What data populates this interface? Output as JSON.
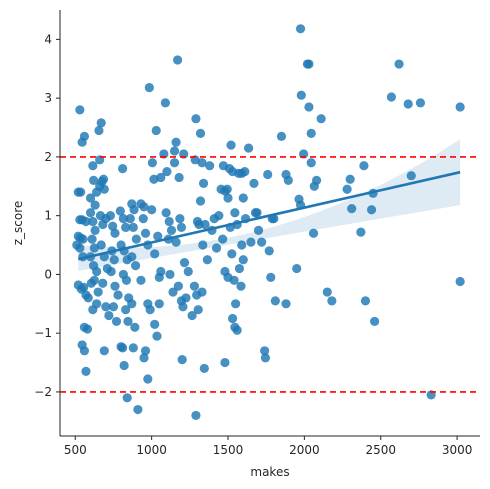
{
  "chart_data": {
    "type": "scatter",
    "xlabel": "makes",
    "ylabel": "z_score",
    "xlim": [
      400,
      3150
    ],
    "ylim": [
      -2.75,
      4.5
    ],
    "x_ticks": [
      500,
      1000,
      1500,
      2000,
      2500,
      3000
    ],
    "y_ticks": [
      -2,
      -1,
      0,
      1,
      2,
      3,
      4
    ],
    "grid": false,
    "colors": {
      "points": "#1f77b4",
      "regression_line": "#1f77b4",
      "confidence_band": "#1f77b4",
      "reference_lines": "#ff0000"
    },
    "reference_lines": [
      2,
      -2
    ],
    "regression": {
      "x": [
        520,
        3020
      ],
      "y": [
        0.26,
        1.74
      ],
      "ci_lower": [
        0.06,
        1.18
      ],
      "ci_mid_lower": [
        0.49,
        0.76
      ],
      "ci_mid_upper": [
        0.6,
        0.98
      ],
      "ci_upper": [
        0.5,
        2.3
      ]
    },
    "points": [
      [
        530,
        2.8
      ],
      [
        545,
        2.25
      ],
      [
        560,
        2.35
      ],
      [
        520,
        1.4
      ],
      [
        535,
        1.4
      ],
      [
        530,
        0.93
      ],
      [
        545,
        0.93
      ],
      [
        520,
        0.65
      ],
      [
        535,
        0.62
      ],
      [
        550,
        0.6
      ],
      [
        510,
        0.5
      ],
      [
        530,
        0.45
      ],
      [
        550,
        0.3
      ],
      [
        570,
        0.9
      ],
      [
        520,
        -0.18
      ],
      [
        540,
        -0.25
      ],
      [
        555,
        -0.22
      ],
      [
        570,
        -0.35
      ],
      [
        585,
        -0.4
      ],
      [
        560,
        -0.9
      ],
      [
        580,
        -0.93
      ],
      [
        545,
        -1.2
      ],
      [
        560,
        -1.3
      ],
      [
        570,
        -1.65
      ],
      [
        600,
        1.3
      ],
      [
        620,
        1.6
      ],
      [
        615,
        1.85
      ],
      [
        630,
        1.18
      ],
      [
        640,
        1.4
      ],
      [
        600,
        1.05
      ],
      [
        615,
        0.9
      ],
      [
        630,
        0.75
      ],
      [
        610,
        0.6
      ],
      [
        625,
        0.45
      ],
      [
        600,
        0.3
      ],
      [
        620,
        0.15
      ],
      [
        640,
        0.05
      ],
      [
        605,
        -0.15
      ],
      [
        625,
        -0.1
      ],
      [
        650,
        -0.3
      ],
      [
        615,
        -0.6
      ],
      [
        640,
        -0.5
      ],
      [
        655,
        2.45
      ],
      [
        670,
        2.58
      ],
      [
        660,
        1.5
      ],
      [
        675,
        1.58
      ],
      [
        685,
        1.62
      ],
      [
        690,
        1.45
      ],
      [
        665,
        1.0
      ],
      [
        680,
        0.85
      ],
      [
        700,
        0.95
      ],
      [
        670,
        0.5
      ],
      [
        690,
        0.3
      ],
      [
        710,
        0.1
      ],
      [
        680,
        -0.15
      ],
      [
        700,
        -0.55
      ],
      [
        720,
        -0.7
      ],
      [
        690,
        -1.3
      ],
      [
        660,
        1.95
      ],
      [
        730,
        1.0
      ],
      [
        745,
        0.82
      ],
      [
        760,
        0.7
      ],
      [
        740,
        0.4
      ],
      [
        755,
        0.25
      ],
      [
        735,
        0.05
      ],
      [
        760,
        -0.2
      ],
      [
        780,
        -0.35
      ],
      [
        750,
        -0.55
      ],
      [
        770,
        -0.8
      ],
      [
        800,
        -1.23
      ],
      [
        810,
        -1.25
      ],
      [
        820,
        -1.55
      ],
      [
        810,
        1.8
      ],
      [
        795,
        1.08
      ],
      [
        815,
        0.95
      ],
      [
        830,
        0.8
      ],
      [
        800,
        0.5
      ],
      [
        820,
        0.4
      ],
      [
        840,
        0.25
      ],
      [
        815,
        0.0
      ],
      [
        835,
        -0.1
      ],
      [
        850,
        -0.4
      ],
      [
        830,
        -0.6
      ],
      [
        845,
        -0.8
      ],
      [
        840,
        -2.1
      ],
      [
        870,
        1.2
      ],
      [
        885,
        1.1
      ],
      [
        860,
        0.95
      ],
      [
        880,
        0.8
      ],
      [
        900,
        0.6
      ],
      [
        870,
        0.3
      ],
      [
        895,
        0.15
      ],
      [
        870,
        -0.5
      ],
      [
        890,
        -0.9
      ],
      [
        880,
        -1.25
      ],
      [
        910,
        -2.3
      ],
      [
        930,
        1.2
      ],
      [
        950,
        1.15
      ],
      [
        960,
        0.7
      ],
      [
        945,
        0.95
      ],
      [
        975,
        0.5
      ],
      [
        930,
        -0.1
      ],
      [
        960,
        -1.3
      ],
      [
        950,
        -1.42
      ],
      [
        975,
        -1.78
      ],
      [
        985,
        3.18
      ],
      [
        975,
        -0.5
      ],
      [
        990,
        -0.6
      ],
      [
        1000,
        1.1
      ],
      [
        1005,
        1.9
      ],
      [
        1015,
        1.62
      ],
      [
        1020,
        0.35
      ],
      [
        1030,
        2.45
      ],
      [
        1040,
        0.65
      ],
      [
        1050,
        -0.05
      ],
      [
        1060,
        1.65
      ],
      [
        1020,
        -0.85
      ],
      [
        1035,
        -1.05
      ],
      [
        1050,
        -0.5
      ],
      [
        1060,
        0.05
      ],
      [
        1080,
        2.05
      ],
      [
        1090,
        2.92
      ],
      [
        1100,
        1.75
      ],
      [
        1095,
        1.05
      ],
      [
        1115,
        0.9
      ],
      [
        1130,
        0.75
      ],
      [
        1110,
        0.6
      ],
      [
        1120,
        0.0
      ],
      [
        1140,
        -0.3
      ],
      [
        1150,
        2.1
      ],
      [
        1160,
        2.25
      ],
      [
        1170,
        3.65
      ],
      [
        1150,
        1.9
      ],
      [
        1180,
        1.65
      ],
      [
        1160,
        0.55
      ],
      [
        1175,
        -0.2
      ],
      [
        1195,
        -0.45
      ],
      [
        1185,
        0.95
      ],
      [
        1210,
        2.05
      ],
      [
        1195,
        0.8
      ],
      [
        1215,
        0.2
      ],
      [
        1205,
        -0.55
      ],
      [
        1225,
        -0.4
      ],
      [
        1200,
        -1.45
      ],
      [
        1240,
        0.05
      ],
      [
        1265,
        -0.7
      ],
      [
        1285,
        1.95
      ],
      [
        1290,
        2.65
      ],
      [
        1300,
        0.9
      ],
      [
        1310,
        0.85
      ],
      [
        1280,
        -0.2
      ],
      [
        1295,
        -0.35
      ],
      [
        1305,
        -0.6
      ],
      [
        1290,
        -2.4
      ],
      [
        1320,
        2.4
      ],
      [
        1330,
        1.9
      ],
      [
        1340,
        1.55
      ],
      [
        1320,
        1.25
      ],
      [
        1335,
        0.5
      ],
      [
        1350,
        0.85
      ],
      [
        1330,
        -0.3
      ],
      [
        1345,
        -1.6
      ],
      [
        1365,
        0.25
      ],
      [
        1380,
        1.85
      ],
      [
        1395,
        0.75
      ],
      [
        1410,
        0.95
      ],
      [
        1425,
        0.45
      ],
      [
        1440,
        1.0
      ],
      [
        1455,
        1.45
      ],
      [
        1470,
        1.85
      ],
      [
        1480,
        1.42
      ],
      [
        1495,
        1.45
      ],
      [
        1500,
        1.3
      ],
      [
        1510,
        1.8
      ],
      [
        1465,
        0.6
      ],
      [
        1480,
        0.05
      ],
      [
        1500,
        -0.05
      ],
      [
        1515,
        0.8
      ],
      [
        1480,
        -1.5
      ],
      [
        1520,
        2.2
      ],
      [
        1530,
        1.75
      ],
      [
        1545,
        1.05
      ],
      [
        1560,
        0.85
      ],
      [
        1525,
        0.35
      ],
      [
        1540,
        -0.1
      ],
      [
        1550,
        -0.5
      ],
      [
        1530,
        -0.75
      ],
      [
        1545,
        -0.9
      ],
      [
        1570,
        1.72
      ],
      [
        1590,
        1.72
      ],
      [
        1610,
        1.75
      ],
      [
        1600,
        1.3
      ],
      [
        1615,
        0.95
      ],
      [
        1590,
        0.5
      ],
      [
        1600,
        0.25
      ],
      [
        1575,
        0.1
      ],
      [
        1585,
        -0.2
      ],
      [
        1560,
        -0.95
      ],
      [
        1635,
        2.15
      ],
      [
        1650,
        0.55
      ],
      [
        1670,
        1.55
      ],
      [
        1680,
        1.05
      ],
      [
        1690,
        1.05
      ],
      [
        1700,
        0.75
      ],
      [
        1720,
        0.55
      ],
      [
        1740,
        -1.3
      ],
      [
        1745,
        -1.42
      ],
      [
        1760,
        1.7
      ],
      [
        1770,
        0.4
      ],
      [
        1790,
        0.95
      ],
      [
        1800,
        0.95
      ],
      [
        1780,
        -0.05
      ],
      [
        1810,
        -0.45
      ],
      [
        1850,
        2.35
      ],
      [
        1880,
        1.7
      ],
      [
        1895,
        1.6
      ],
      [
        1880,
        -0.5
      ],
      [
        1950,
        0.1
      ],
      [
        1965,
        1.28
      ],
      [
        1975,
        1.18
      ],
      [
        1980,
        3.05
      ],
      [
        1975,
        4.18
      ],
      [
        1995,
        2.05
      ],
      [
        2020,
        3.58
      ],
      [
        2030,
        3.58
      ],
      [
        2030,
        2.85
      ],
      [
        2045,
        1.9
      ],
      [
        2045,
        2.4
      ],
      [
        2065,
        1.5
      ],
      [
        2080,
        1.6
      ],
      [
        2060,
        0.7
      ],
      [
        2110,
        2.65
      ],
      [
        2150,
        -0.3
      ],
      [
        2180,
        -0.45
      ],
      [
        2280,
        1.45
      ],
      [
        2300,
        1.62
      ],
      [
        2310,
        1.12
      ],
      [
        2370,
        0.72
      ],
      [
        2390,
        1.85
      ],
      [
        2400,
        -0.45
      ],
      [
        2440,
        1.1
      ],
      [
        2450,
        1.38
      ],
      [
        2460,
        -0.8
      ],
      [
        2570,
        3.02
      ],
      [
        2620,
        3.58
      ],
      [
        2680,
        2.9
      ],
      [
        2700,
        1.68
      ],
      [
        2760,
        2.92
      ],
      [
        2830,
        -2.05
      ],
      [
        3020,
        2.85
      ],
      [
        3020,
        -0.12
      ]
    ]
  }
}
